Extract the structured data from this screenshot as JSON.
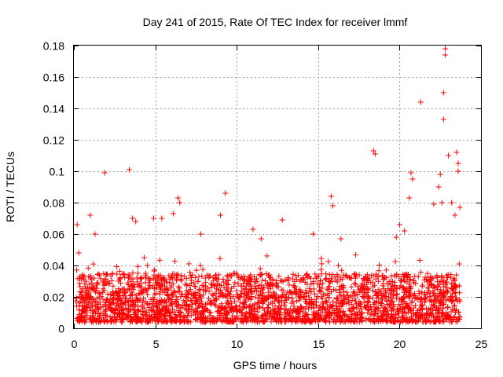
{
  "chart_data": {
    "type": "scatter",
    "title": "Day 241 of 2015, Rate Of TEC Index for receiver lmmf",
    "xlabel": "GPS time / hours",
    "ylabel": "ROTI / TECUs",
    "xlim": [
      0,
      25
    ],
    "ylim": [
      0,
      0.18
    ],
    "xticks": [
      0,
      5,
      10,
      15,
      20,
      25
    ],
    "yticks": [
      0,
      0.02,
      0.04,
      0.06,
      0.08,
      0.1,
      0.12,
      0.14,
      0.16,
      0.18
    ],
    "xtick_labels": [
      "0",
      "5",
      "10",
      "15",
      "20",
      "25"
    ],
    "ytick_labels": [
      "0",
      "0.02",
      "0.04",
      "0.06",
      "0.08",
      "0.1",
      "0.12",
      "0.14",
      "0.16",
      "0.18"
    ],
    "grid": true,
    "marker": "+",
    "color": "#ff0000",
    "series": [
      {
        "name": "ROTI",
        "x": [
          0.2,
          0.3,
          1.0,
          1.3,
          1.9,
          3.4,
          3.6,
          3.8,
          4.9,
          5.4,
          6.1,
          6.4,
          6.5,
          7.8,
          9.0,
          9.3,
          11.0,
          11.5,
          12.8,
          14.7,
          15.8,
          15.9,
          16.4,
          18.4,
          18.5,
          19.8,
          20.0,
          20.3,
          20.6,
          20.7,
          20.8,
          21.3,
          22.1,
          22.4,
          22.5,
          22.6,
          22.7,
          22.7,
          22.8,
          22.8,
          23.0,
          23.2,
          23.4,
          23.5,
          23.6,
          23.6,
          23.7
        ],
        "y": [
          0.066,
          0.048,
          0.072,
          0.06,
          0.099,
          0.101,
          0.07,
          0.068,
          0.07,
          0.07,
          0.073,
          0.083,
          0.08,
          0.06,
          0.072,
          0.086,
          0.063,
          0.057,
          0.069,
          0.06,
          0.084,
          0.078,
          0.057,
          0.113,
          0.111,
          0.058,
          0.066,
          0.062,
          0.083,
          0.099,
          0.095,
          0.144,
          0.079,
          0.09,
          0.098,
          0.08,
          0.133,
          0.15,
          0.178,
          0.174,
          0.11,
          0.08,
          0.072,
          0.112,
          0.105,
          0.1,
          0.077
        ]
      }
    ],
    "dense_band": {
      "x_range": [
        0.1,
        23.7
      ],
      "typical_min": 0.004,
      "typical_max": 0.035
    }
  }
}
